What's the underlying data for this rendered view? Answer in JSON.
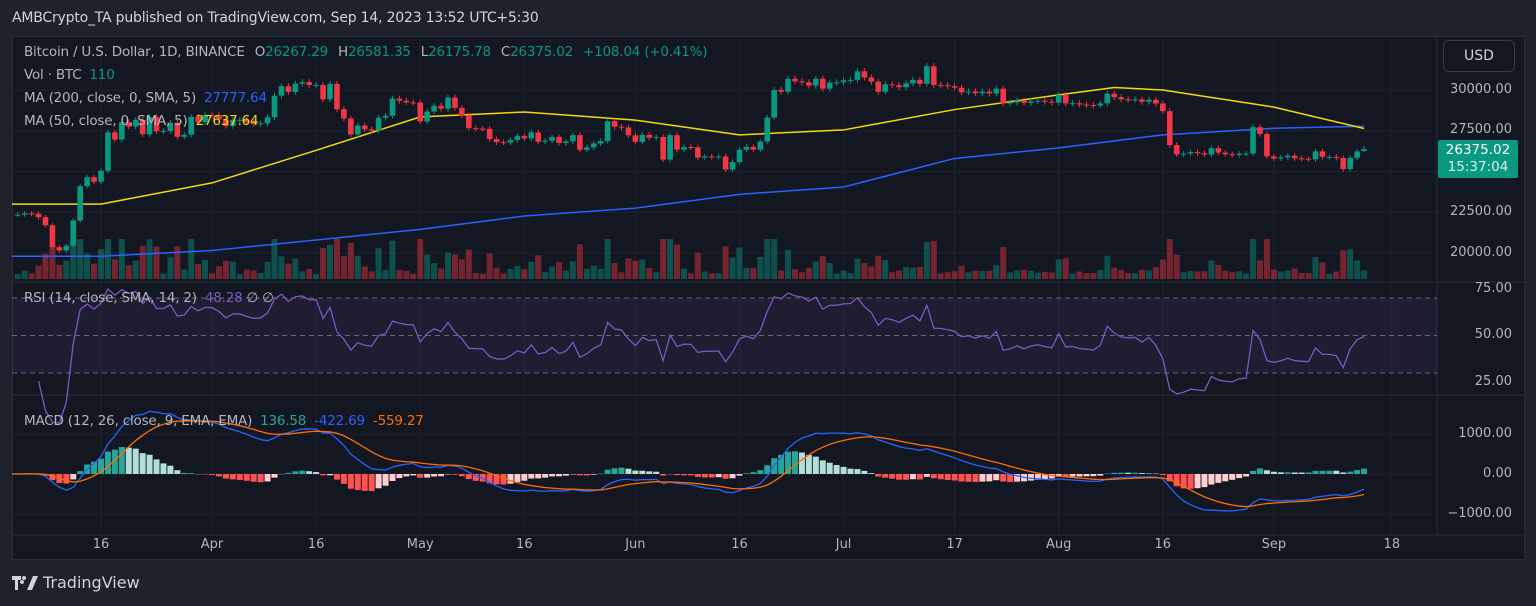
{
  "header": {
    "published": "AMBCrypto_TA published on TradingView.com, Sep 14, 2023 13:52 UTC+5:30"
  },
  "legend": {
    "symbol": "Bitcoin / U.S. Dollar, 1D, BINANCE",
    "o_label": "O",
    "open": "26267.29",
    "h_label": "H",
    "high": "26581.35",
    "l_label": "L",
    "low": "26175.78",
    "c_label": "C",
    "close": "26375.02",
    "change": "+108.04 (+0.41%)",
    "vol_label": "Vol · BTC",
    "vol_value": "110",
    "ma200_label": "MA (200, close, 0, SMA, 5)",
    "ma200_value": "27777.64",
    "ma50_label": "MA (50, close, 0, SMA, 5)",
    "ma50_value": "27637.64",
    "rsi_label": "RSI (14, close, SMA, 14, 2)",
    "rsi_value": "48.28",
    "rsi_extra": "∅ ∅",
    "macd_label": "MACD (12, 26, close, 9, EMA, EMA)",
    "macd_hist": "136.58",
    "macd_line": "-422.69",
    "macd_signal": "-559.27"
  },
  "currency_button": "USD",
  "last_price": {
    "value": "26375.02",
    "countdown": "15:37:04"
  },
  "price_axis": [
    "30000.00",
    "27500.00",
    "22500.00",
    "20000.00"
  ],
  "rsi_axis": [
    "75.00",
    "50.00",
    "25.00"
  ],
  "macd_axis": [
    "1000.00",
    "0.00",
    "−1000.00"
  ],
  "time_axis": [
    {
      "label": "16",
      "date": "2023-03-16"
    },
    {
      "label": "Apr",
      "date": "2023-04-01"
    },
    {
      "label": "16",
      "date": "2023-04-16"
    },
    {
      "label": "May",
      "date": "2023-05-01"
    },
    {
      "label": "16",
      "date": "2023-05-16"
    },
    {
      "label": "Jun",
      "date": "2023-06-01"
    },
    {
      "label": "16",
      "date": "2023-06-16"
    },
    {
      "label": "Jul",
      "date": "2023-07-01"
    },
    {
      "label": "17",
      "date": "2023-07-17"
    },
    {
      "label": "Aug",
      "date": "2023-08-01"
    },
    {
      "label": "16",
      "date": "2023-08-16"
    },
    {
      "label": "Sep",
      "date": "2023-09-01"
    },
    {
      "label": "18",
      "date": "2023-09-18"
    }
  ],
  "footer": {
    "brand": "TradingView"
  },
  "colors": {
    "up": "#089981",
    "down": "#f23645",
    "ma50": "#f5d90a",
    "ma200": "#2962ff",
    "rsi": "#7e57c2",
    "macd": "#2962ff",
    "signal": "#ff6d00"
  },
  "chart_data": {
    "type": "candlestick",
    "title": "Bitcoin / U.S. Dollar, 1D, BINANCE",
    "ylim": [
      18500,
      32500
    ],
    "first_open": 23470,
    "months": [
      {
        "month": "2023-03",
        "days": [
          3,
          4,
          5,
          6,
          7,
          8,
          9,
          10,
          11,
          12,
          13,
          14,
          15,
          16,
          17,
          18,
          19,
          20,
          21,
          22,
          23,
          24,
          25,
          26,
          27,
          28,
          29,
          30,
          31
        ],
        "close": [
          22350,
          22350,
          22430,
          22410,
          22200,
          21700,
          20360,
          20150,
          20450,
          21990,
          24100,
          24650,
          24370,
          25040,
          27400,
          26960,
          28030,
          27760,
          28170,
          27290,
          28340,
          27470,
          27480,
          27990,
          27130,
          27260,
          28350,
          28030,
          28470
        ]
      },
      {
        "month": "2023-04",
        "days": [
          1,
          2,
          3,
          4,
          5,
          6,
          7,
          8,
          9,
          10,
          11,
          12,
          13,
          14,
          15,
          16,
          17,
          18,
          19,
          20,
          21,
          22,
          23,
          24,
          25,
          26,
          27,
          28,
          29,
          30
        ],
        "close": [
          28450,
          28200,
          27790,
          28170,
          28170,
          28030,
          27920,
          27950,
          28330,
          29650,
          30230,
          29880,
          30390,
          30480,
          30310,
          30310,
          29430,
          30380,
          28820,
          28250,
          27270,
          27820,
          27590,
          27510,
          28300,
          28420,
          29470,
          29340,
          29240,
          29230
        ]
      },
      {
        "month": "2023-05",
        "days": [
          1,
          2,
          3,
          4,
          5,
          6,
          7,
          8,
          9,
          10,
          11,
          12,
          13,
          14,
          15,
          16,
          17,
          18,
          19,
          20,
          21,
          22,
          23,
          24,
          25,
          26,
          27,
          28,
          29,
          30,
          31
        ],
        "close": [
          28070,
          28680,
          29030,
          28850,
          29540,
          28900,
          28430,
          27660,
          27630,
          27620,
          26990,
          26800,
          26780,
          26930,
          27170,
          27030,
          27400,
          26830,
          26890,
          27110,
          26750,
          26850,
          27230,
          26330,
          26480,
          26720,
          26870,
          28090,
          27750,
          27700,
          27220
        ]
      },
      {
        "month": "2023-06",
        "days": [
          1,
          2,
          3,
          4,
          5,
          6,
          7,
          8,
          9,
          10,
          11,
          12,
          13,
          14,
          15,
          16,
          17,
          18,
          19,
          20,
          21,
          22,
          23,
          24,
          25,
          26,
          27,
          28,
          29,
          30
        ],
        "close": [
          26820,
          27250,
          27070,
          27120,
          25730,
          27230,
          26340,
          26500,
          26480,
          25850,
          25920,
          25900,
          25920,
          25120,
          25580,
          26330,
          26510,
          26340,
          26840,
          28310,
          30000,
          29890,
          30690,
          30530,
          30470,
          30270,
          30690,
          30080,
          30450,
          30470
        ]
      },
      {
        "month": "2023-07",
        "days": [
          1,
          2,
          3,
          4,
          5,
          6,
          7,
          8,
          9,
          10,
          11,
          12,
          13,
          14,
          15,
          16,
          17,
          18,
          19,
          20,
          21,
          22,
          23,
          24,
          25,
          26,
          27,
          28,
          29,
          30,
          31
        ],
        "close": [
          30590,
          30620,
          31150,
          30770,
          30510,
          29890,
          30350,
          30290,
          30170,
          30410,
          30620,
          30380,
          31460,
          30310,
          30290,
          30230,
          30140,
          29860,
          29910,
          29800,
          29900,
          29790,
          30080,
          29180,
          29230,
          29350,
          29210,
          29310,
          29350,
          29280,
          29230
        ]
      },
      {
        "month": "2023-08",
        "days": [
          1,
          2,
          3,
          4,
          5,
          6,
          7,
          8,
          9,
          10,
          11,
          12,
          13,
          14,
          15,
          16,
          17,
          18,
          19,
          20,
          21,
          22,
          23,
          24,
          25,
          26,
          27,
          28,
          29,
          30,
          31
        ],
        "close": [
          29700,
          29180,
          29190,
          29110,
          29080,
          29050,
          29180,
          29770,
          29560,
          29430,
          29400,
          29420,
          29280,
          29400,
          29170,
          28700,
          26620,
          26050,
          26100,
          26190,
          26120,
          26040,
          26430,
          26160,
          26060,
          26010,
          26090,
          26100,
          27720,
          27300,
          25930
        ]
      },
      {
        "month": "2023-09",
        "days": [
          1,
          2,
          3,
          4,
          5,
          6,
          7,
          8,
          9,
          10,
          11,
          12,
          13,
          14
        ],
        "close": [
          25800,
          25870,
          25970,
          25810,
          25780,
          25750,
          26240,
          25900,
          25900,
          25830,
          25150,
          25840,
          26230,
          26375.02
        ]
      }
    ],
    "ma200": [
      [
        "2023-03-03",
        19800
      ],
      [
        "2023-03-16",
        19800
      ],
      [
        "2023-04-01",
        20150
      ],
      [
        "2023-04-16",
        20800
      ],
      [
        "2023-05-01",
        21450
      ],
      [
        "2023-05-16",
        22270
      ],
      [
        "2023-06-01",
        22750
      ],
      [
        "2023-06-16",
        23600
      ],
      [
        "2023-07-01",
        24050
      ],
      [
        "2023-07-17",
        25800
      ],
      [
        "2023-08-01",
        26450
      ],
      [
        "2023-08-16",
        27250
      ],
      [
        "2023-09-01",
        27650
      ],
      [
        "2023-09-14",
        27777.64
      ]
    ],
    "ma50": [
      [
        "2023-03-03",
        23000
      ],
      [
        "2023-03-16",
        23000
      ],
      [
        "2023-04-01",
        24300
      ],
      [
        "2023-04-16",
        26300
      ],
      [
        "2023-05-01",
        28350
      ],
      [
        "2023-05-16",
        28650
      ],
      [
        "2023-06-01",
        28150
      ],
      [
        "2023-06-16",
        27250
      ],
      [
        "2023-07-01",
        27550
      ],
      [
        "2023-07-17",
        28800
      ],
      [
        "2023-08-01",
        29700
      ],
      [
        "2023-08-09",
        30150
      ],
      [
        "2023-08-16",
        30000
      ],
      [
        "2023-09-01",
        28950
      ],
      [
        "2023-09-14",
        27637.64
      ]
    ],
    "rsi": {
      "period": 14,
      "ylim": [
        15,
        80
      ],
      "bands": [
        70,
        50,
        30
      ]
    },
    "macd": {
      "fast": 12,
      "slow": 26,
      "signal": 9,
      "ylim": [
        -1500,
        1500
      ]
    }
  }
}
